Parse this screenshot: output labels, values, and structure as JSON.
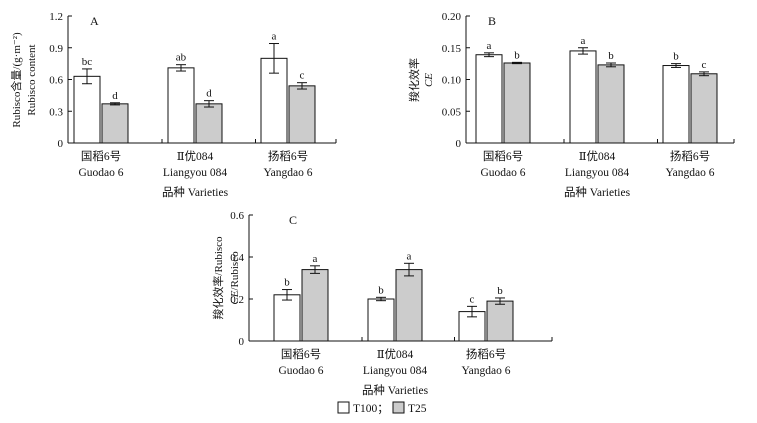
{
  "x_axis_label": "品种 Varieties",
  "legend": [
    {
      "name": "T100；",
      "color": "#ffffff"
    },
    {
      "name": "T25",
      "color": "#cccccc"
    }
  ],
  "chart_data": [
    {
      "type": "bar",
      "panel_label": "A",
      "ylabel_lines": [
        "Rubisco含量/(g·m⁻²)",
        "Rubisco content"
      ],
      "ylim": [
        0,
        1.2
      ],
      "yticks": [
        "0",
        "0.3",
        "0.6",
        "0.9",
        "1.2"
      ],
      "ytick_values": [
        0,
        0.3,
        0.6,
        0.9,
        1.2
      ],
      "categories": [
        [
          "国稻6号",
          "Guodao 6"
        ],
        [
          "Ⅱ优084",
          "Liangyou 084"
        ],
        [
          "扬稻6号",
          "Yangdao 6"
        ]
      ],
      "xlabel": "品种 Varieties",
      "series": [
        {
          "name": "T100",
          "values": [
            0.63,
            0.71,
            0.8
          ],
          "errors": [
            0.07,
            0.03,
            0.14
          ],
          "labels": [
            "bc",
            "ab",
            "a"
          ]
        },
        {
          "name": "T25",
          "values": [
            0.37,
            0.37,
            0.54
          ],
          "errors": [
            0.01,
            0.03,
            0.03
          ],
          "labels": [
            "d",
            "d",
            "c"
          ]
        }
      ]
    },
    {
      "type": "bar",
      "panel_label": "B",
      "ylabel_lines": [
        "羧化效率",
        "CE"
      ],
      "ylim": [
        0,
        0.2
      ],
      "yticks": [
        "0",
        "0.05",
        "0.10",
        "0.15",
        "0.20"
      ],
      "ytick_values": [
        0,
        0.05,
        0.1,
        0.15,
        0.2
      ],
      "categories": [
        [
          "国稻6号",
          "Guodao 6"
        ],
        [
          "Ⅱ优084",
          "Liangyou 084"
        ],
        [
          "扬稻6号",
          "Yangdao 6"
        ]
      ],
      "xlabel": "品种 Varieties",
      "series": [
        {
          "name": "T100",
          "values": [
            0.139,
            0.145,
            0.122
          ],
          "errors": [
            0.003,
            0.005,
            0.003
          ],
          "labels": [
            "a",
            "a",
            "b"
          ]
        },
        {
          "name": "T25",
          "values": [
            0.126,
            0.123,
            0.109
          ],
          "errors": [
            0.001,
            0.003,
            0.003
          ],
          "labels": [
            "b",
            "b",
            "c"
          ]
        }
      ]
    },
    {
      "type": "bar",
      "panel_label": "C",
      "ylabel_lines": [
        "羧化效率/Rubisco",
        "CE/Rubisco"
      ],
      "ylim": [
        0,
        0.6
      ],
      "yticks": [
        "0",
        "0.2",
        "0.4",
        "0.6"
      ],
      "ytick_values": [
        0,
        0.2,
        0.4,
        0.6
      ],
      "categories": [
        [
          "国稻6号",
          "Guodao 6"
        ],
        [
          "Ⅱ优084",
          "Liangyou 084"
        ],
        [
          "扬稻6号",
          "Yangdao 6"
        ]
      ],
      "xlabel": "品种 Varieties",
      "series": [
        {
          "name": "T100",
          "values": [
            0.22,
            0.2,
            0.14
          ],
          "errors": [
            0.025,
            0.008,
            0.025
          ],
          "labels": [
            "b",
            "b",
            "c"
          ]
        },
        {
          "name": "T25",
          "values": [
            0.34,
            0.34,
            0.19
          ],
          "errors": [
            0.018,
            0.03,
            0.015
          ],
          "labels": [
            "a",
            "a",
            "b"
          ]
        }
      ]
    }
  ]
}
